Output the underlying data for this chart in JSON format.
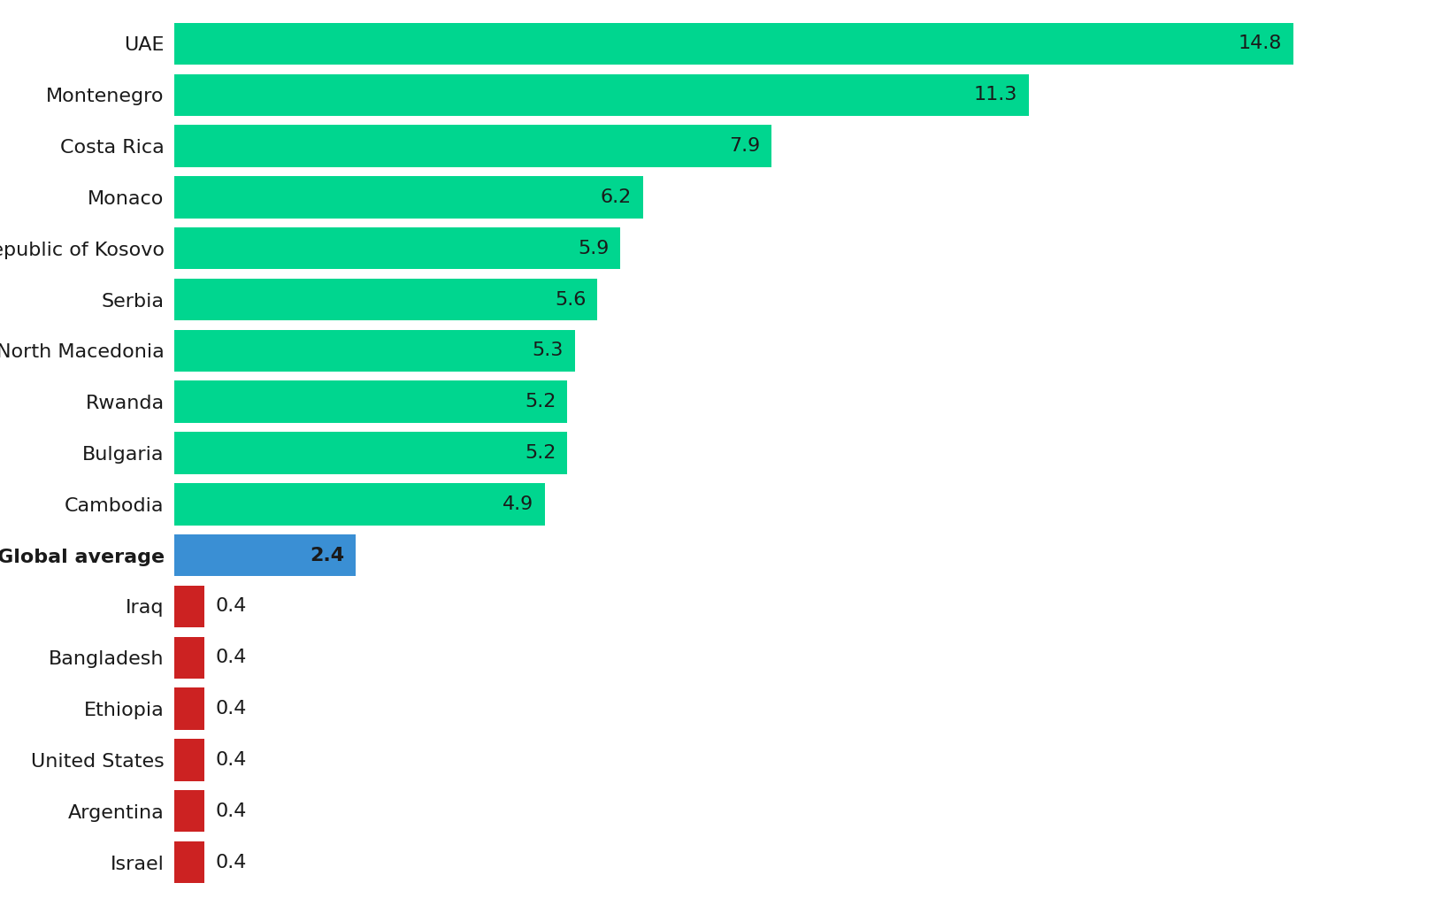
{
  "categories": [
    "UAE",
    "Montenegro",
    "Costa Rica",
    "Monaco",
    "Republic of Kosovo",
    "Serbia",
    "North Macedonia",
    "Rwanda",
    "Bulgaria",
    "Cambodia",
    "Global average",
    "Iraq",
    "Bangladesh",
    "Ethiopia",
    "United States",
    "Argentina",
    "Israel"
  ],
  "values": [
    14.8,
    11.3,
    7.9,
    6.2,
    5.9,
    5.6,
    5.3,
    5.2,
    5.2,
    4.9,
    2.4,
    0.4,
    0.4,
    0.4,
    0.4,
    0.4,
    0.4
  ],
  "bar_colors": [
    "#00D68F",
    "#00D68F",
    "#00D68F",
    "#00D68F",
    "#00D68F",
    "#00D68F",
    "#00D68F",
    "#00D68F",
    "#00D68F",
    "#00D68F",
    "#3A8FD4",
    "#CC2222",
    "#CC2222",
    "#CC2222",
    "#CC2222",
    "#CC2222",
    "#CC2222"
  ],
  "value_label_color": "#1a1a1a",
  "background_color": "#FFFFFF",
  "bar_height": 0.82,
  "xlim": [
    0,
    16.5
  ],
  "fontsize_labels": 16,
  "fontsize_values": 16
}
